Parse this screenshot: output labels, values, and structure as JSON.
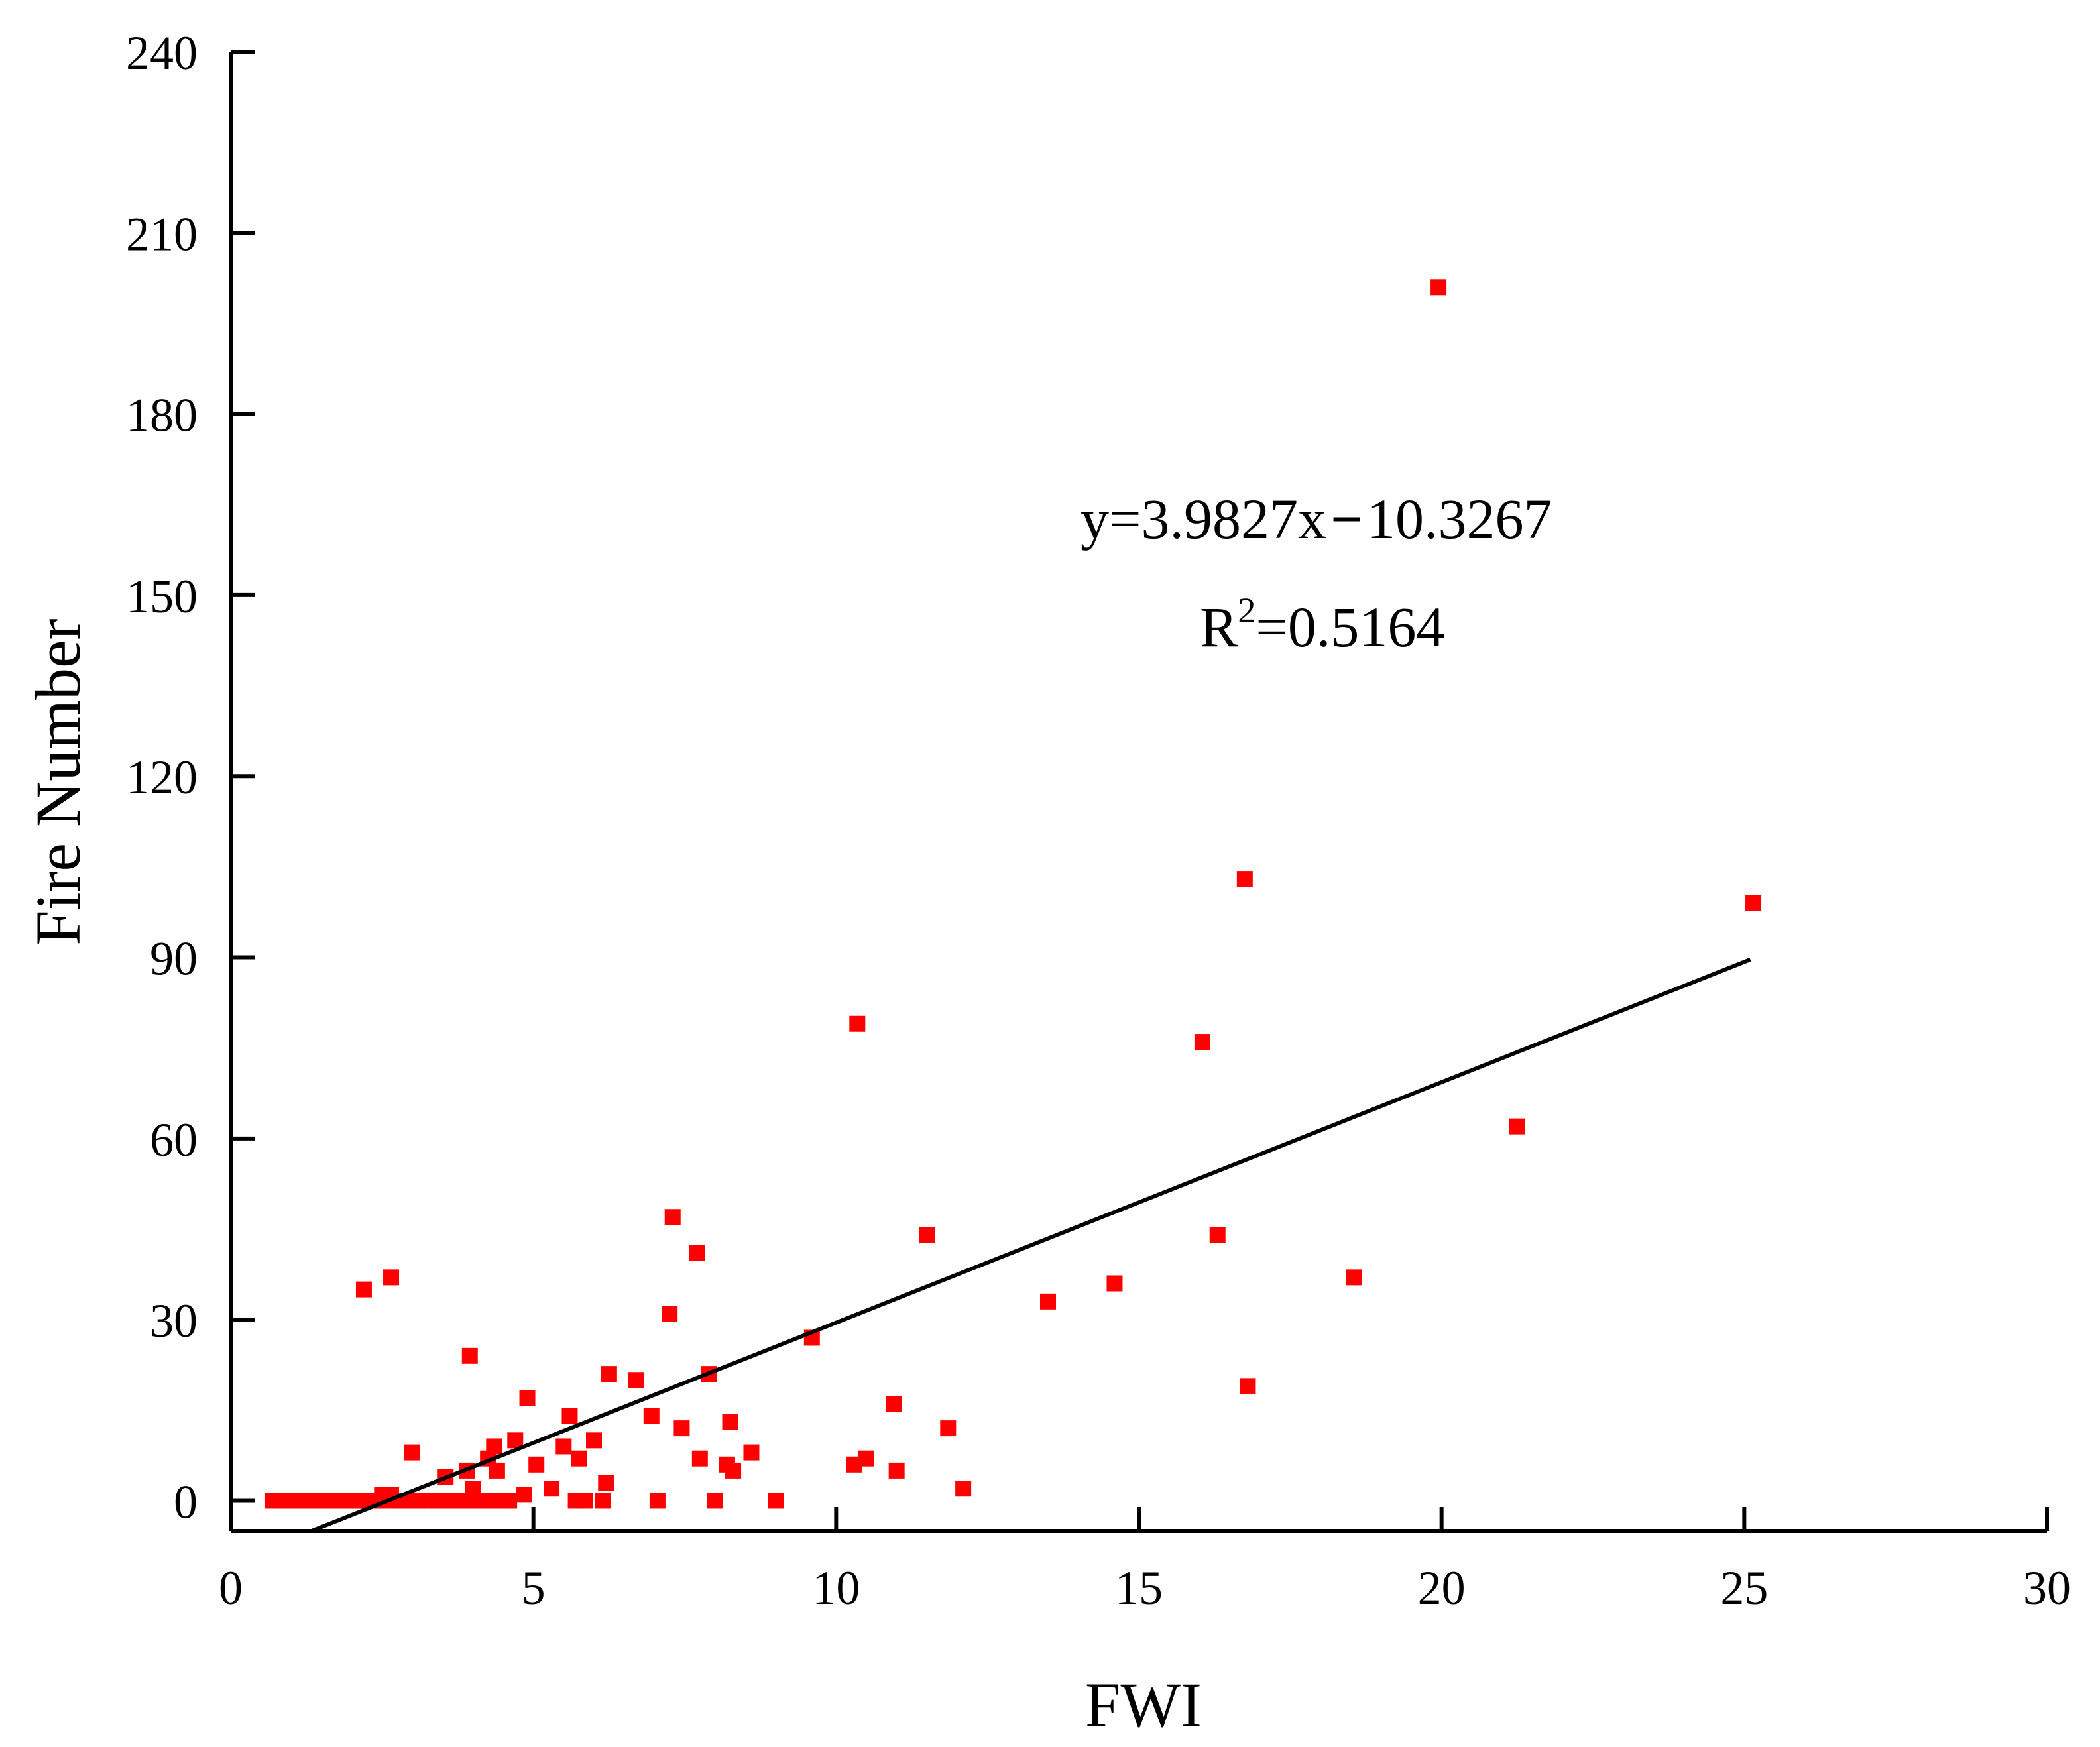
{
  "chart_data": {
    "type": "scatter",
    "title": "",
    "xlabel": "FWI",
    "ylabel": "Fire Number",
    "xlim": [
      0,
      30
    ],
    "ylim": [
      -5,
      240
    ],
    "xticks": [
      0,
      5,
      10,
      15,
      20,
      25,
      30
    ],
    "yticks": [
      0,
      30,
      60,
      90,
      120,
      150,
      180,
      210,
      240
    ],
    "grid": false,
    "marker_color": "#ff0000",
    "line_color": "#000000",
    "fit": {
      "slope": 3.9827,
      "intercept": -10.3267,
      "x_range": [
        1.35,
        25.1
      ],
      "equation_prefix": "y=3.9827x",
      "equation_minus": "−",
      "equation_suffix": "10.3267",
      "r2_base": "R",
      "r2_exp": "2",
      "r2_value": "=0.5164"
    },
    "series": [
      {
        "name": "Fire Number",
        "points": [
          [
            0.7,
            0
          ],
          [
            0.85,
            0
          ],
          [
            1.0,
            0
          ],
          [
            1.1,
            0
          ],
          [
            1.2,
            0
          ],
          [
            1.3,
            0
          ],
          [
            1.4,
            0
          ],
          [
            1.5,
            0
          ],
          [
            1.6,
            0
          ],
          [
            1.7,
            0
          ],
          [
            1.8,
            0
          ],
          [
            1.9,
            0
          ],
          [
            2.0,
            0
          ],
          [
            2.1,
            0
          ],
          [
            2.2,
            0
          ],
          [
            2.3,
            0
          ],
          [
            2.4,
            0
          ],
          [
            2.5,
            1
          ],
          [
            2.6,
            0
          ],
          [
            2.65,
            1
          ],
          [
            2.8,
            0
          ],
          [
            2.9,
            0
          ],
          [
            3.0,
            0
          ],
          [
            3.1,
            0
          ],
          [
            3.3,
            0
          ],
          [
            3.4,
            0
          ],
          [
            3.5,
            0
          ],
          [
            3.6,
            0
          ],
          [
            3.7,
            0
          ],
          [
            3.8,
            0
          ],
          [
            3.9,
            0
          ],
          [
            4.0,
            0
          ],
          [
            4.1,
            0
          ],
          [
            4.2,
            0
          ],
          [
            4.3,
            0
          ],
          [
            4.4,
            0
          ],
          [
            4.5,
            0
          ],
          [
            4.6,
            0
          ],
          [
            2.2,
            35
          ],
          [
            2.65,
            37
          ],
          [
            3.0,
            8
          ],
          [
            3.55,
            4
          ],
          [
            3.9,
            5
          ],
          [
            3.95,
            24
          ],
          [
            4.0,
            2
          ],
          [
            4.25,
            7
          ],
          [
            4.35,
            9
          ],
          [
            4.4,
            5
          ],
          [
            4.7,
            10
          ],
          [
            4.85,
            1
          ],
          [
            4.9,
            17
          ],
          [
            5.05,
            6
          ],
          [
            5.3,
            2
          ],
          [
            5.5,
            9
          ],
          [
            5.6,
            14
          ],
          [
            5.7,
            0
          ],
          [
            5.75,
            7
          ],
          [
            5.85,
            0
          ],
          [
            6.0,
            10
          ],
          [
            6.15,
            0
          ],
          [
            6.2,
            3
          ],
          [
            6.25,
            21
          ],
          [
            6.7,
            20
          ],
          [
            6.95,
            14
          ],
          [
            7.05,
            0
          ],
          [
            7.25,
            31
          ],
          [
            7.3,
            47
          ],
          [
            7.45,
            12
          ],
          [
            7.7,
            41
          ],
          [
            7.75,
            7
          ],
          [
            7.9,
            21
          ],
          [
            8.0,
            0
          ],
          [
            8.2,
            6
          ],
          [
            8.25,
            13
          ],
          [
            8.3,
            5
          ],
          [
            8.6,
            8
          ],
          [
            9.0,
            0
          ],
          [
            9.6,
            27
          ],
          [
            10.3,
            6
          ],
          [
            10.35,
            79
          ],
          [
            10.5,
            7
          ],
          [
            10.95,
            16
          ],
          [
            11.0,
            5
          ],
          [
            11.5,
            44
          ],
          [
            11.85,
            12
          ],
          [
            12.1,
            2
          ],
          [
            13.5,
            33
          ],
          [
            14.6,
            36
          ],
          [
            16.05,
            76
          ],
          [
            16.3,
            44
          ],
          [
            16.75,
            103
          ],
          [
            16.8,
            19
          ],
          [
            18.55,
            37
          ],
          [
            19.95,
            201
          ],
          [
            21.25,
            62
          ],
          [
            25.15,
            99
          ]
        ]
      }
    ]
  }
}
